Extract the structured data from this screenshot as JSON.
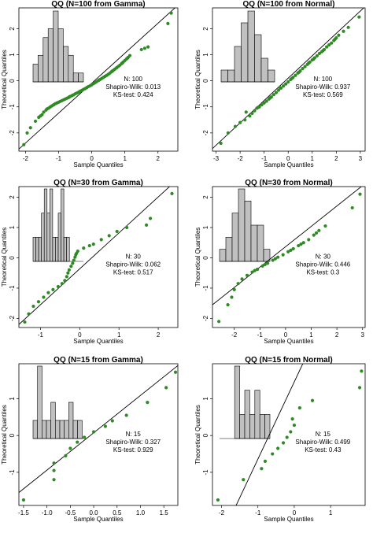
{
  "colors": {
    "point": "#2e8b24",
    "bar": "#c0c0c0",
    "axis": "#000000"
  },
  "labels": {
    "xlabel": "Sample Quantiles",
    "ylabel": "Theoretical Quantiles",
    "n_prefix": "N:",
    "sw_prefix": "Shapiro-Wilk:",
    "ks_prefix": "KS-test:"
  },
  "chart_data": [
    {
      "type": "scatter",
      "title": "QQ (N=100 from Gamma)",
      "xlabel": "Sample Quantiles",
      "ylabel": "Theoretical Quantiles",
      "xlim": [
        -2.2,
        2.6
      ],
      "ylim": [
        -2.7,
        2.8
      ],
      "xticks": [
        "-2",
        "-1",
        "0",
        "1",
        "2"
      ],
      "xtick_values": [
        -2,
        -1,
        0,
        1,
        2
      ],
      "yticks": [
        "-2",
        "-1",
        "0",
        "1",
        "2"
      ],
      "ytick_values": [
        -2,
        -1,
        0,
        1,
        2
      ],
      "n": "100",
      "shapiro_wilk": "0.013",
      "ks_test": "0.424",
      "line": [
        [
          -2.2,
          -2.62
        ],
        [
          2.6,
          2.9
        ]
      ],
      "hist": {
        "bins": 10,
        "counts": [
          2,
          3,
          5,
          6,
          8,
          6,
          4,
          3,
          1,
          1
        ]
      },
      "points": [
        [
          -2.05,
          -2.45
        ],
        [
          -1.85,
          -1.8
        ],
        [
          -1.7,
          -1.55
        ],
        [
          -1.6,
          -1.4
        ],
        [
          -1.5,
          -1.3
        ],
        [
          -1.45,
          -1.2
        ],
        [
          -1.38,
          -1.12
        ],
        [
          -1.3,
          -1.05
        ],
        [
          -1.25,
          -1.0
        ],
        [
          -1.2,
          -0.96
        ],
        [
          -1.15,
          -0.92
        ],
        [
          -1.1,
          -0.88
        ],
        [
          -1.05,
          -0.85
        ],
        [
          -1.0,
          -0.82
        ],
        [
          -0.95,
          -0.79
        ],
        [
          -0.9,
          -0.76
        ],
        [
          -0.85,
          -0.73
        ],
        [
          -0.8,
          -0.7
        ],
        [
          -0.75,
          -0.67
        ],
        [
          -0.7,
          -0.64
        ],
        [
          -0.65,
          -0.6
        ],
        [
          -0.6,
          -0.57
        ],
        [
          -0.55,
          -0.54
        ],
        [
          -0.5,
          -0.5
        ],
        [
          -0.45,
          -0.47
        ],
        [
          -0.4,
          -0.44
        ],
        [
          -0.35,
          -0.4
        ],
        [
          -0.3,
          -0.37
        ],
        [
          -0.25,
          -0.33
        ],
        [
          -0.2,
          -0.3
        ],
        [
          -0.15,
          -0.26
        ],
        [
          -0.1,
          -0.22
        ],
        [
          -0.05,
          -0.19
        ],
        [
          0.0,
          -0.15
        ],
        [
          0.05,
          -0.11
        ],
        [
          0.1,
          -0.07
        ],
        [
          0.15,
          -0.03
        ],
        [
          0.2,
          0.01
        ],
        [
          0.25,
          0.05
        ],
        [
          0.3,
          0.09
        ],
        [
          0.35,
          0.13
        ],
        [
          0.4,
          0.17
        ],
        [
          0.45,
          0.21
        ],
        [
          0.5,
          0.25
        ],
        [
          0.55,
          0.3
        ],
        [
          0.6,
          0.35
        ],
        [
          0.65,
          0.4
        ],
        [
          0.7,
          0.45
        ],
        [
          0.75,
          0.5
        ],
        [
          0.8,
          0.55
        ],
        [
          0.85,
          0.6
        ],
        [
          0.9,
          0.66
        ],
        [
          0.95,
          0.72
        ],
        [
          1.0,
          0.78
        ],
        [
          1.05,
          0.84
        ],
        [
          1.1,
          0.9
        ],
        [
          1.15,
          0.97
        ],
        [
          1.5,
          1.2
        ],
        [
          1.6,
          1.25
        ],
        [
          1.7,
          1.3
        ],
        [
          2.3,
          2.2
        ],
        [
          2.4,
          2.6
        ],
        [
          -1.95,
          -2.0
        ],
        [
          -1.55,
          -1.35
        ],
        [
          -1.35,
          -1.08
        ],
        [
          -0.68,
          -0.62
        ],
        [
          0.22,
          0.03
        ],
        [
          0.62,
          0.37
        ],
        [
          0.92,
          0.68
        ],
        [
          1.08,
          0.87
        ]
      ]
    },
    {
      "type": "scatter",
      "title": "QQ (N=100 from Normal)",
      "xlabel": "Sample Quantiles",
      "ylabel": "Theoretical Quantiles",
      "xlim": [
        -3.15,
        3.2
      ],
      "ylim": [
        -2.7,
        2.8
      ],
      "xticks": [
        "-3",
        "-2",
        "-1",
        "0",
        "1",
        "2",
        "3"
      ],
      "xtick_values": [
        -3,
        -2,
        -1,
        0,
        1,
        2,
        3
      ],
      "yticks": [
        "-2",
        "-1",
        "0",
        "1",
        "2"
      ],
      "ytick_values": [
        -2,
        -1,
        0,
        1,
        2
      ],
      "n": "100",
      "shapiro_wilk": "0.937",
      "ks_test": "0.569",
      "line": [
        [
          -3.15,
          -2.6
        ],
        [
          3.2,
          2.85
        ]
      ],
      "hist": {
        "bins": 8,
        "counts": [
          1,
          1,
          3,
          5,
          6,
          4,
          2,
          1
        ]
      },
      "points": [
        [
          -2.8,
          -2.4
        ],
        [
          -2.5,
          -2.0
        ],
        [
          -2.2,
          -1.75
        ],
        [
          -2.0,
          -1.6
        ],
        [
          -1.8,
          -1.5
        ],
        [
          -1.6,
          -1.35
        ],
        [
          -1.5,
          -1.25
        ],
        [
          -1.4,
          -1.15
        ],
        [
          -1.3,
          -1.05
        ],
        [
          -1.2,
          -1.0
        ],
        [
          -1.1,
          -0.92
        ],
        [
          -1.0,
          -0.85
        ],
        [
          -0.9,
          -0.78
        ],
        [
          -0.8,
          -0.7
        ],
        [
          -0.7,
          -0.62
        ],
        [
          -0.6,
          -0.53
        ],
        [
          -0.5,
          -0.45
        ],
        [
          -0.4,
          -0.36
        ],
        [
          -0.3,
          -0.28
        ],
        [
          -0.2,
          -0.2
        ],
        [
          -0.1,
          -0.12
        ],
        [
          0.0,
          -0.04
        ],
        [
          0.1,
          0.05
        ],
        [
          0.2,
          0.13
        ],
        [
          0.3,
          0.21
        ],
        [
          0.4,
          0.3
        ],
        [
          0.5,
          0.38
        ],
        [
          0.6,
          0.47
        ],
        [
          0.7,
          0.55
        ],
        [
          0.8,
          0.63
        ],
        [
          0.9,
          0.72
        ],
        [
          1.0,
          0.8
        ],
        [
          1.1,
          0.88
        ],
        [
          1.2,
          0.96
        ],
        [
          1.3,
          1.05
        ],
        [
          1.4,
          1.12
        ],
        [
          1.5,
          1.2
        ],
        [
          1.6,
          1.3
        ],
        [
          1.7,
          1.38
        ],
        [
          1.8,
          1.45
        ],
        [
          1.9,
          1.55
        ],
        [
          2.0,
          1.65
        ],
        [
          2.1,
          1.75
        ],
        [
          2.3,
          1.9
        ],
        [
          2.5,
          2.05
        ],
        [
          2.95,
          2.45
        ],
        [
          -1.75,
          -1.2
        ],
        [
          -0.35,
          -0.25
        ],
        [
          0.45,
          0.33
        ],
        [
          1.05,
          0.83
        ],
        [
          1.45,
          1.16
        ],
        [
          1.95,
          1.6
        ],
        [
          -0.75,
          -0.65
        ],
        [
          0.15,
          0.09
        ],
        [
          -1.25,
          -1.02
        ],
        [
          0.85,
          0.68
        ]
      ]
    },
    {
      "type": "scatter",
      "title": "QQ (N=30 from Gamma)",
      "xlabel": "Sample Quantiles",
      "ylabel": "Theoretical Quantiles",
      "xlim": [
        -1.55,
        2.5
      ],
      "ylim": [
        -2.3,
        2.35
      ],
      "xticks": [
        "-1",
        "0",
        "1",
        "2"
      ],
      "xtick_values": [
        -1,
        0,
        1,
        2
      ],
      "yticks": [
        "-2",
        "-1",
        "0",
        "1",
        "2"
      ],
      "ytick_values": [
        -2,
        -1,
        0,
        1,
        2
      ],
      "n": "30",
      "shapiro_wilk": "0.062",
      "ks_test": "0.517",
      "line": [
        [
          -1.55,
          -2.2
        ],
        [
          2.5,
          2.6
        ]
      ],
      "hist": {
        "bins": 18,
        "counts": [
          1,
          1,
          1,
          2,
          3,
          2,
          3,
          1,
          1,
          2,
          3,
          1,
          1,
          0,
          0,
          0,
          0,
          0
        ]
      },
      "points": [
        [
          -1.4,
          -2.12
        ],
        [
          -1.3,
          -1.85
        ],
        [
          -1.18,
          -1.6
        ],
        [
          -1.05,
          -1.45
        ],
        [
          -0.92,
          -1.3
        ],
        [
          -0.8,
          -1.15
        ],
        [
          -0.68,
          -1.05
        ],
        [
          -0.55,
          -0.95
        ],
        [
          -0.45,
          -0.85
        ],
        [
          -0.38,
          -0.75
        ],
        [
          -0.33,
          -0.62
        ],
        [
          -0.3,
          -0.5
        ],
        [
          -0.27,
          -0.4
        ],
        [
          -0.22,
          -0.28
        ],
        [
          -0.18,
          -0.18
        ],
        [
          -0.15,
          -0.08
        ],
        [
          -0.12,
          0.02
        ],
        [
          -0.1,
          0.1
        ],
        [
          -0.05,
          0.22
        ],
        [
          0.1,
          0.32
        ],
        [
          0.35,
          0.45
        ],
        [
          0.55,
          0.6
        ],
        [
          0.75,
          0.73
        ],
        [
          0.95,
          0.87
        ],
        [
          1.2,
          1.0
        ],
        [
          1.7,
          1.08
        ],
        [
          1.8,
          1.3
        ],
        [
          2.35,
          2.12
        ],
        [
          -0.08,
          0.15
        ],
        [
          0.25,
          0.4
        ]
      ]
    },
    {
      "type": "scatter",
      "title": "QQ (N=30 from Normal)",
      "xlabel": "Sample Quantiles",
      "ylabel": "Theoretical Quantiles",
      "xlim": [
        -2.85,
        3.1
      ],
      "ylim": [
        -2.3,
        2.35
      ],
      "xticks": [
        "-2",
        "-1",
        "0",
        "1",
        "2",
        "3"
      ],
      "xtick_values": [
        -2,
        -1,
        0,
        1,
        2,
        3
      ],
      "yticks": [
        "-2",
        "-1",
        "0",
        "1",
        "2"
      ],
      "ytick_values": [
        -2,
        -1,
        0,
        1,
        2
      ],
      "n": "30",
      "shapiro_wilk": "0.446",
      "ks_test": "0.3",
      "line": [
        [
          -2.85,
          -1.55
        ],
        [
          3.1,
          2.45
        ]
      ],
      "hist": {
        "bins": 8,
        "counts": [
          1,
          2,
          4,
          6,
          5,
          3,
          3,
          1
        ]
      },
      "points": [
        [
          -2.6,
          -2.1
        ],
        [
          -2.25,
          -1.55
        ],
        [
          -2.1,
          -1.3
        ],
        [
          -2.0,
          -1.05
        ],
        [
          -1.85,
          -0.85
        ],
        [
          -1.7,
          -0.7
        ],
        [
          -1.5,
          -0.58
        ],
        [
          -1.3,
          -0.47
        ],
        [
          -1.1,
          -0.38
        ],
        [
          -0.9,
          -0.27
        ],
        [
          -0.7,
          -0.18
        ],
        [
          -0.5,
          -0.08
        ],
        [
          -0.3,
          0.02
        ],
        [
          -0.1,
          0.1
        ],
        [
          0.1,
          0.2
        ],
        [
          0.3,
          0.3
        ],
        [
          0.5,
          0.4
        ],
        [
          0.7,
          0.5
        ],
        [
          0.9,
          0.6
        ],
        [
          1.1,
          0.75
        ],
        [
          1.3,
          0.9
        ],
        [
          1.55,
          1.05
        ],
        [
          2.6,
          1.65
        ],
        [
          2.9,
          2.1
        ],
        [
          -0.4,
          -0.03
        ],
        [
          0.2,
          0.25
        ],
        [
          -1.2,
          -0.42
        ],
        [
          -0.8,
          -0.22
        ],
        [
          0.6,
          0.45
        ],
        [
          1.2,
          0.82
        ]
      ]
    },
    {
      "type": "scatter",
      "title": "QQ (N=15 from Gamma)",
      "xlabel": "Sample Quantiles",
      "ylabel": "Theoretical Quantiles",
      "xlim": [
        -1.6,
        1.8
      ],
      "ylim": [
        -1.9,
        1.95
      ],
      "xticks": [
        "-1.5",
        "-1.0",
        "-0.5",
        "0.0",
        "0.5",
        "1.0",
        "1.5"
      ],
      "xtick_values": [
        -1.5,
        -1.0,
        -0.5,
        0.0,
        0.5,
        1.0,
        1.5
      ],
      "yticks": [
        "-1",
        "0",
        "1"
      ],
      "ytick_values": [
        -1,
        0,
        1
      ],
      "n": "15",
      "shapiro_wilk": "0.327",
      "ks_test": "0.929",
      "line": [
        [
          -1.6,
          -1.55
        ],
        [
          1.8,
          1.9
        ]
      ],
      "hist": {
        "bins": 12,
        "counts": [
          1,
          4,
          1,
          1,
          2,
          1,
          1,
          1,
          2,
          1,
          1,
          0
        ]
      },
      "points": [
        [
          -1.5,
          -1.75
        ],
        [
          -0.85,
          -1.2
        ],
        [
          -0.85,
          -0.95
        ],
        [
          -0.85,
          -0.75
        ],
        [
          -0.6,
          -0.55
        ],
        [
          -0.5,
          -0.35
        ],
        [
          -0.35,
          -0.18
        ],
        [
          -0.2,
          -0.05
        ],
        [
          0.0,
          0.1
        ],
        [
          0.25,
          0.25
        ],
        [
          0.4,
          0.4
        ],
        [
          0.7,
          0.55
        ],
        [
          1.15,
          0.9
        ],
        [
          1.55,
          1.3
        ],
        [
          1.75,
          1.72
        ]
      ]
    },
    {
      "type": "scatter",
      "title": "QQ (N=15 from Normal)",
      "xlabel": "Sample Quantiles",
      "ylabel": "Theoretical Quantiles",
      "xlim": [
        -2.25,
        1.95
      ],
      "ylim": [
        -1.9,
        1.95
      ],
      "xticks": [
        "-2",
        "-1",
        "0",
        "1"
      ],
      "xtick_values": [
        -2,
        -1,
        0,
        1
      ],
      "yticks": [
        "-1",
        "0",
        "1"
      ],
      "ytick_values": [
        -1,
        0,
        1
      ],
      "n": "15",
      "shapiro_wilk": "0.499",
      "ks_test": "0.43",
      "line": [
        [
          -1.6,
          -1.9
        ],
        [
          0.45,
          2.4
        ]
      ],
      "hist": {
        "bins": 10,
        "counts": [
          0,
          0,
          0,
          3,
          1,
          2,
          1,
          2,
          1,
          1
        ]
      },
      "points": [
        [
          -2.1,
          -1.75
        ],
        [
          -1.4,
          -1.2
        ],
        [
          -0.9,
          -0.9
        ],
        [
          -0.8,
          -0.7
        ],
        [
          -0.6,
          -0.5
        ],
        [
          -0.45,
          -0.35
        ],
        [
          -0.3,
          -0.2
        ],
        [
          -0.2,
          -0.05
        ],
        [
          -0.1,
          0.1
        ],
        [
          0.0,
          0.28
        ],
        [
          -0.05,
          0.45
        ],
        [
          0.15,
          0.75
        ],
        [
          0.5,
          0.95
        ],
        [
          1.8,
          1.3
        ],
        [
          1.85,
          1.75
        ]
      ]
    }
  ]
}
